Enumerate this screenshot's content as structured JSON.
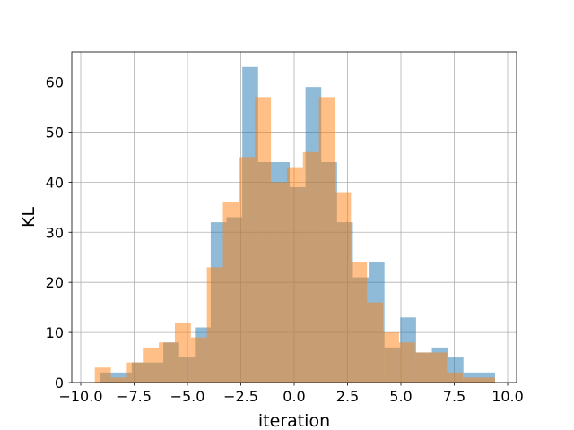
{
  "chart_data": {
    "type": "bar",
    "subtype": "overlapping-histogram",
    "title": "",
    "xlabel": "iteration",
    "ylabel": "KL",
    "xlim": [
      -10.42,
      10.42
    ],
    "ylim": [
      0,
      66
    ],
    "xticks": [
      -10.0,
      -7.5,
      -5.0,
      -2.5,
      0.0,
      2.5,
      5.0,
      7.5,
      10.0
    ],
    "xtick_labels": [
      "−10.0",
      "−7.5",
      "−5.0",
      "−2.5",
      "0.0",
      "2.5",
      "5.0",
      "7.5",
      "10.0"
    ],
    "yticks": [
      0,
      10,
      20,
      30,
      40,
      50,
      60
    ],
    "ytick_labels": [
      "0",
      "10",
      "20",
      "30",
      "40",
      "50",
      "60"
    ],
    "grid": true,
    "legend": "none",
    "series": [
      {
        "color": "#1f77b4",
        "alpha": 0.5,
        "bin_edges": [
          -9.08,
          -8.34,
          -7.61,
          -6.87,
          -6.13,
          -5.39,
          -4.65,
          -3.91,
          -3.17,
          -2.43,
          -1.69,
          -0.95,
          -0.21,
          0.53,
          1.27,
          2.01,
          2.75,
          3.49,
          4.23,
          4.97,
          5.71,
          6.45,
          7.19,
          7.93,
          8.67,
          9.41
        ],
        "counts": [
          2,
          2,
          4,
          4,
          8,
          5,
          11,
          32,
          33,
          63,
          44,
          44,
          39,
          59,
          44,
          32,
          21,
          24,
          7,
          13,
          6,
          7,
          5,
          2,
          2
        ]
      },
      {
        "color": "#ff7f0e",
        "alpha": 0.5,
        "bin_edges": [
          -9.34,
          -8.59,
          -7.84,
          -7.09,
          -6.34,
          -5.59,
          -4.84,
          -4.09,
          -3.34,
          -2.59,
          -1.84,
          -1.09,
          -0.34,
          0.41,
          1.16,
          1.91,
          2.66,
          3.41,
          4.16,
          4.91,
          5.66,
          6.41,
          7.16,
          7.91,
          8.66,
          9.41
        ],
        "counts": [
          3,
          1,
          4,
          7,
          8,
          12,
          9,
          23,
          36,
          45,
          57,
          40,
          43,
          46,
          57,
          38,
          24,
          16,
          10,
          8,
          6,
          6,
          2,
          1,
          1
        ]
      }
    ]
  }
}
